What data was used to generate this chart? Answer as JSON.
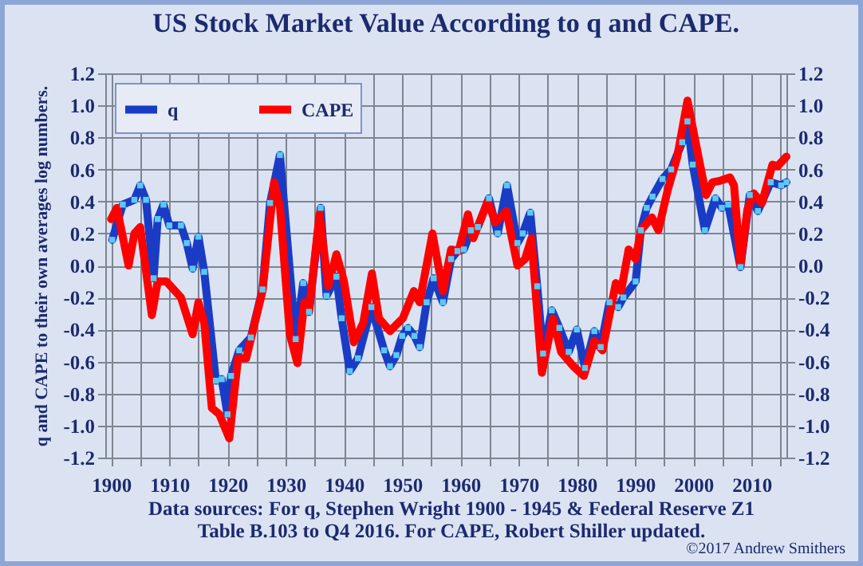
{
  "chart_data": {
    "type": "line",
    "title": "US Stock Market Value According to q and CAPE.",
    "ylabel": "q and CAPE to their own averages log numbers.",
    "xlim": [
      1899,
      2016
    ],
    "xticks": [
      1900,
      {
        "value": 1905,
        "label": null
      },
      1910,
      {
        "value": 1915,
        "label": null
      },
      1920,
      {
        "value": 1925,
        "label": null
      },
      1930,
      {
        "value": 1935,
        "label": null
      },
      1940,
      {
        "value": 1945,
        "label": null
      },
      1950,
      {
        "value": 1955,
        "label": null
      },
      1960,
      {
        "value": 1965,
        "label": null
      },
      1970,
      {
        "value": 1975,
        "label": null
      },
      1980,
      {
        "value": 1985,
        "label": null
      },
      1990,
      {
        "value": 1995,
        "label": null
      },
      2000,
      {
        "value": 2005,
        "label": null
      },
      2010,
      {
        "value": 2015,
        "label": null
      }
    ],
    "ylim": [
      -1.2,
      1.2
    ],
    "yticks": [
      -1.2,
      {
        "value": -1,
        "label": "-1.0"
      },
      -0.8,
      -0.6,
      -0.4,
      -0.2,
      {
        "value": 0,
        "label": "0.0"
      },
      0.2,
      0.4,
      0.6,
      0.8,
      {
        "value": 1,
        "label": "1.0"
      },
      1.2
    ],
    "y2lim": [
      -1.2,
      1.2
    ],
    "y2ticks": [
      -1.2,
      {
        "value": -1,
        "label": "-1.0"
      },
      -0.8,
      -0.6,
      -0.4,
      -0.2,
      {
        "value": 0,
        "label": "0.0"
      },
      0.2,
      0.4,
      0.6,
      0.8,
      {
        "value": 1,
        "label": "1.0"
      },
      1.2
    ],
    "grid": true,
    "legend": "top left",
    "series": [
      {
        "name": "q",
        "color": "#1a3cc4",
        "marker": "square",
        "x": [
          1900.2,
          1902,
          1904,
          1905,
          1906,
          1907.3,
          1908,
          1909,
          1910,
          1912,
          1913,
          1914,
          1915,
          1916,
          1918,
          1919,
          1920,
          1920.6,
          1922,
          1924,
          1926,
          1927.3,
          1929,
          1931.7,
          1933,
          1934,
          1936,
          1937,
          1938.7,
          1939.6,
          1941,
          1942.4,
          1944.7,
          1946.9,
          1947.9,
          1949,
          1950,
          1951,
          1952.1,
          1953,
          1954.2,
          1955.4,
          1957,
          1958.4,
          1959.5,
          1960.6,
          1961.8,
          1963,
          1964.9,
          1966.4,
          1968,
          1969.8,
          1970.7,
          1972,
          1973.2,
          1974.2,
          1975.7,
          1977,
          1978.6,
          1980,
          1981.4,
          1983,
          1984.1,
          1985.6,
          1987.1,
          1988,
          1990.1,
          1991,
          1992,
          1993,
          1994.7,
          1996.2,
          1998.1,
          1999,
          1999.9,
          2002,
          2003.8,
          2004.9,
          2006,
          2008.1,
          2009.7,
          2011.1,
          2013.3,
          2015.1,
          2016
        ],
        "values": [
          0.16,
          0.38,
          0.41,
          0.5,
          0.41,
          -0.08,
          0.29,
          0.38,
          0.25,
          0.25,
          0.14,
          -0.02,
          0.18,
          -0.04,
          -0.72,
          -0.71,
          -0.93,
          -0.69,
          -0.53,
          -0.45,
          -0.15,
          0.39,
          0.69,
          -0.46,
          -0.11,
          -0.29,
          0.36,
          -0.19,
          -0.07,
          -0.33,
          -0.66,
          -0.58,
          -0.26,
          -0.53,
          -0.63,
          -0.56,
          -0.44,
          -0.39,
          -0.44,
          -0.51,
          -0.23,
          -0.08,
          -0.23,
          0.04,
          0.09,
          0.1,
          0.22,
          0.24,
          0.42,
          0.2,
          0.5,
          0.14,
          0.2,
          0.33,
          -0.13,
          -0.55,
          -0.28,
          -0.39,
          -0.54,
          -0.4,
          -0.64,
          -0.41,
          -0.51,
          -0.23,
          -0.26,
          -0.2,
          -0.1,
          0.22,
          0.36,
          0.43,
          0.54,
          0.6,
          0.77,
          0.9,
          0.63,
          0.22,
          0.42,
          0.36,
          0.38,
          -0.01,
          0.44,
          0.34,
          0.52,
          0.5,
          0.52
        ]
      },
      {
        "name": "CAPE",
        "color": "#ff0000",
        "x": [
          1900,
          1901,
          1903,
          1904,
          1905,
          1907,
          1908,
          1909.5,
          1912,
          1914,
          1915,
          1916,
          1917.3,
          1918.6,
          1920.3,
          1921.8,
          1923.2,
          1926,
          1928,
          1929,
          1930.7,
          1932,
          1933.2,
          1934,
          1935.8,
          1937.3,
          1938.7,
          1940,
          1941.7,
          1943.3,
          1944.8,
          1946,
          1947.9,
          1950.1,
          1952,
          1953,
          1955.2,
          1957,
          1958.4,
          1959.7,
          1961.3,
          1962.2,
          1964.7,
          1966,
          1967.9,
          1969.8,
          1971.1,
          1972.2,
          1974,
          1975.9,
          1977.3,
          1979.4,
          1981.2,
          1983,
          1984.4,
          1986.7,
          1987.6,
          1988.9,
          1990.1,
          1991,
          1992.9,
          1994,
          1995.6,
          1997.2,
          1999,
          2000.4,
          2002.2,
          2003.3,
          2004.7,
          2006.3,
          2007,
          2008.1,
          2009.3,
          2010.4,
          2011.8,
          2013.6,
          2014.5,
          2016
        ],
        "values": [
          0.29,
          0.36,
          0,
          0.2,
          0.24,
          -0.31,
          -0.1,
          -0.1,
          -0.2,
          -0.43,
          -0.23,
          -0.36,
          -0.89,
          -0.93,
          -1.08,
          -0.58,
          -0.58,
          -0.16,
          0.52,
          0.37,
          -0.43,
          -0.61,
          -0.23,
          -0.28,
          0.32,
          -0.13,
          0.07,
          -0.1,
          -0.48,
          -0.36,
          -0.05,
          -0.33,
          -0.41,
          -0.33,
          -0.16,
          -0.23,
          0.2,
          -0.16,
          0.1,
          0.09,
          0.32,
          0.17,
          0.4,
          0.27,
          0.34,
          0,
          0.04,
          0.17,
          -0.67,
          -0.33,
          -0.54,
          -0.63,
          -0.69,
          -0.47,
          -0.53,
          -0.11,
          -0.16,
          0.1,
          0.04,
          0.22,
          0.3,
          0.22,
          0.47,
          0.67,
          1.03,
          0.77,
          0.44,
          0.52,
          0.53,
          0.55,
          0.5,
          0,
          0.35,
          0.45,
          0.39,
          0.63,
          0.62,
          0.68
        ]
      }
    ],
    "annotations": [
      "Data sources: For q, Stephen Wright 1900 - 1945 & Federal Reserve Z1  Table B.103 to Q4 2016. For CAPE,  Robert  Shiller updated.",
      "©2017 Andrew Smithers"
    ]
  }
}
